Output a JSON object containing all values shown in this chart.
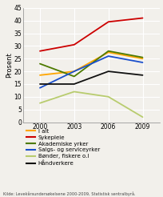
{
  "x": [
    2000,
    2003,
    2006,
    2009
  ],
  "series": {
    "I alt": [
      18.5,
      20.0,
      27.5,
      25.0
    ],
    "Sykepleie": [
      28.0,
      30.5,
      39.5,
      41.0
    ],
    "Akademiske yrker": [
      23.0,
      18.0,
      28.0,
      25.5
    ],
    "Salgs- og serviceyrker": [
      13.5,
      20.0,
      26.0,
      23.5
    ],
    "Bønder, fiskere o.l": [
      7.5,
      12.0,
      10.0,
      2.0
    ],
    "Håndverkere": [
      15.0,
      15.0,
      20.0,
      18.5
    ]
  },
  "colors": {
    "I alt": "#FFA500",
    "Sykepleie": "#CC0000",
    "Akademiske yrker": "#4d7a00",
    "Salgs- og serviceyrker": "#1a4fcc",
    "Bønder, fiskere o.l": "#b8cc6e",
    "Håndverkere": "#111111"
  },
  "ylabel": "Prosent",
  "ylim": [
    0,
    45
  ],
  "yticks": [
    0,
    5,
    10,
    15,
    20,
    25,
    30,
    35,
    40,
    45
  ],
  "xticks": [
    2000,
    2003,
    2006,
    2009
  ],
  "source": "Kilde: Levekårsundersøkelsene 2000-2009, Statistisk sentralbyrå.",
  "background_color": "#f2f0eb"
}
